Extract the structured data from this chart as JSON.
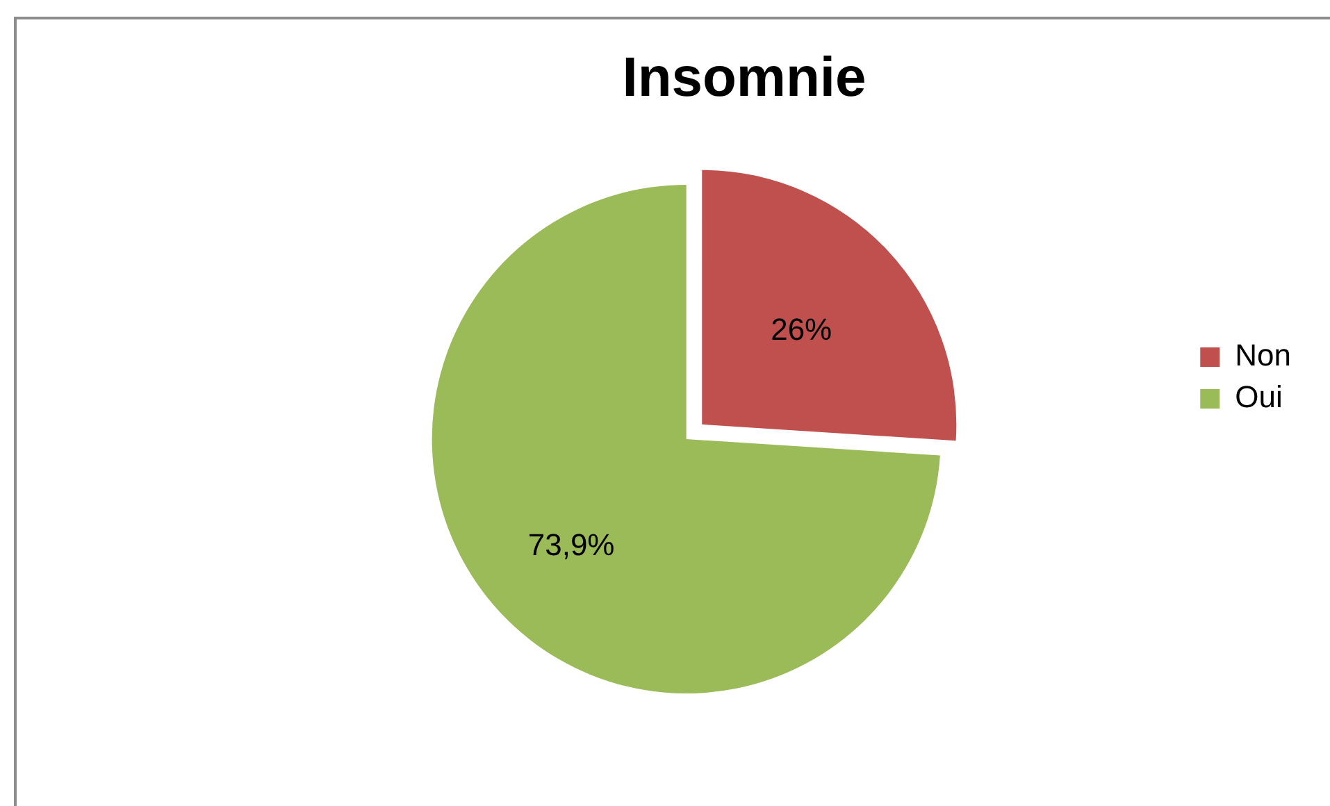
{
  "chart_data": {
    "type": "pie",
    "title": "Insomnie",
    "categories": [
      "Non",
      "Oui"
    ],
    "values": [
      26,
      73.9
    ],
    "colors": [
      "#c0504d",
      "#9bbb59"
    ],
    "value_labels": [
      "26%",
      "73,9%"
    ],
    "legend": "right"
  }
}
